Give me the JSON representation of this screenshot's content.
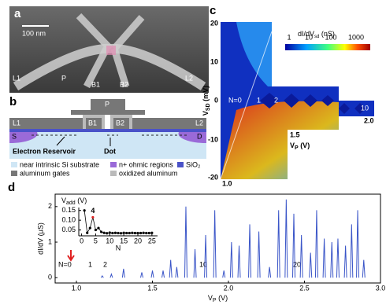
{
  "panel_a": {
    "letter": "a",
    "scale_bar": "100 nm",
    "labels": [
      "L1",
      "P",
      "B1",
      "B2",
      "L2"
    ]
  },
  "panel_b": {
    "letter": "b",
    "gate_top": "P",
    "gates": [
      "L1",
      "B1",
      "B2",
      "L2"
    ],
    "contacts": [
      "S",
      "D"
    ],
    "annotations": [
      "Electron Reservoir",
      "Dot"
    ],
    "legend": [
      "near intrinsic Si substrate",
      "n+ ohmic regions",
      "SiO₂",
      "aluminum  gates",
      "oxidized aluminum"
    ]
  },
  "panel_c": {
    "letter": "c",
    "y_label": {
      "main": "V",
      "sub": "SD",
      "unit": " (mV)"
    },
    "x_label": {
      "main": "V",
      "sub": "P",
      "unit": " (V)"
    },
    "yticks": [
      "20",
      "10",
      "0",
      "-10",
      "-20"
    ],
    "xticks": [
      "1.0",
      "1.5",
      "2.0"
    ],
    "colorbar": {
      "main": "dI/dV",
      "sub": "sd",
      "unit": " (nS)",
      "ticks": [
        "1",
        "10",
        "100",
        "1000"
      ]
    },
    "charge_labels": [
      "N=0",
      "1",
      "2",
      "10"
    ]
  },
  "panel_d": {
    "letter": "d",
    "annotations": [
      "N=0",
      "1",
      "2",
      "10",
      "20"
    ]
  },
  "chart_data": [
    {
      "type": "peaks",
      "color": "#3a55c8",
      "x_label": {
        "main": "V",
        "sub": "P",
        "unit": " (V)"
      },
      "y_label": "dI/dV (μS)",
      "x": [
        1.17,
        1.23,
        1.31,
        1.43,
        1.5,
        1.57,
        1.62,
        1.66,
        1.72,
        1.78,
        1.85,
        1.91,
        1.97,
        2.02,
        2.07,
        2.14,
        2.2,
        2.27,
        2.33,
        2.38,
        2.43,
        2.48,
        2.54,
        2.58,
        2.63,
        2.68,
        2.72,
        2.77,
        2.81,
        2.85,
        2.89
      ],
      "values": [
        0.05,
        0.1,
        0.25,
        0.15,
        0.2,
        0.2,
        0.5,
        0.3,
        2.0,
        0.8,
        1.2,
        1.9,
        0.2,
        1.0,
        0.9,
        1.5,
        1.3,
        0.3,
        1.9,
        2.2,
        1.8,
        1.2,
        0.7,
        1.9,
        1.1,
        1.0,
        1.1,
        0.9,
        1.5,
        1.9,
        0.5
      ],
      "xlim": [
        0.86,
        3.0
      ],
      "ylim": [
        -0.15,
        2.35
      ],
      "xticks": [
        {
          "value": 1,
          "label": "1.0"
        },
        1.5,
        {
          "value": 2,
          "label": "2.0"
        },
        2.5,
        {
          "value": 3,
          "label": "3.0"
        }
      ],
      "yticks": [
        0,
        1,
        2
      ]
    },
    {
      "type": "scatter",
      "color": "#000000",
      "highlight_color": "#e02020",
      "annotation": "4",
      "x_label": "N",
      "y_label": {
        "main": "V",
        "sub": "add",
        "unit": " (V)"
      },
      "x": [
        1,
        2,
        3,
        4,
        5,
        6,
        7,
        8,
        9,
        10,
        11,
        12,
        13,
        14,
        15,
        16,
        17,
        18,
        19,
        20,
        21,
        22,
        23,
        24,
        25
      ],
      "values": [
        0.15,
        0.035,
        0.06,
        0.115,
        0.05,
        0.06,
        0.04,
        0.035,
        0.033,
        0.036,
        0.034,
        0.035,
        0.034,
        0.033,
        0.035,
        0.034,
        0.034,
        0.035,
        0.034,
        0.034,
        0.034,
        0.035,
        0.034,
        0.034,
        0.035
      ],
      "xlim": [
        -1,
        27
      ],
      "ylim": [
        0.02,
        0.165
      ],
      "xticks": [
        0,
        5,
        10,
        15,
        20,
        25
      ],
      "yticks": [
        0.05,
        {
          "value": 0.1,
          "label": "0.10"
        },
        0.15
      ]
    }
  ]
}
